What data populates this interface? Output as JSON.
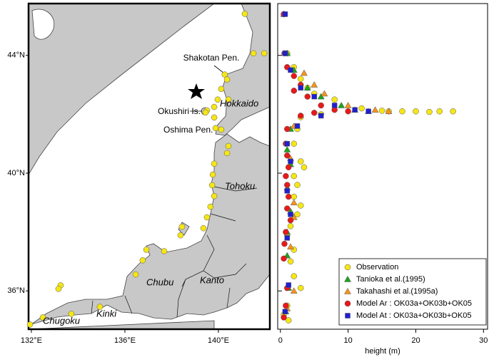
{
  "chart_data": [
    {
      "type": "map",
      "xlim": [
        131.88,
        142.2
      ],
      "ylim": [
        34.7,
        45.76
      ],
      "xticks": [
        {
          "value": 132,
          "label": "132°E"
        },
        {
          "value": 136,
          "label": "136°E"
        },
        {
          "value": 140,
          "label": "140°E"
        }
      ],
      "yticks": [
        {
          "value": 36,
          "label": "36°N"
        },
        {
          "value": 40,
          "label": "40°N"
        },
        {
          "value": 44,
          "label": "44°N"
        }
      ],
      "annotations": [
        "Shakotan Pen.",
        "Okushiri Is.",
        "Hokkaido",
        "Oshima Pen.",
        "Tohoku",
        "Chubu",
        "Kanto",
        "Kinki",
        "Chugoku"
      ],
      "series": [
        {
          "name": "Observation",
          "color": "#f5e616",
          "x": [
            141.13,
            141.5,
            141.96,
            140.27,
            140.37,
            140.12,
            140.43,
            139.97,
            139.82,
            139.51,
            139.45,
            139.82,
            139.88,
            140.12,
            140.43,
            140.37,
            139.82,
            139.76,
            139.73,
            139.82,
            139.66,
            139.51,
            139.36,
            138.44,
            138.38,
            137.68,
            136.92,
            136.76,
            136.46,
            133.25,
            133.16,
            134.93,
            133.71,
            132.49,
            131.94
          ],
          "y": [
            45.41,
            44.07,
            44.07,
            43.35,
            43.18,
            42.86,
            42.5,
            42.5,
            42.25,
            42.13,
            42.06,
            41.89,
            41.53,
            41.48,
            40.92,
            40.68,
            40.32,
            39.95,
            39.59,
            39.22,
            38.86,
            38.5,
            38.13,
            38.18,
            37.89,
            37.35,
            37.4,
            37.04,
            36.56,
            36.19,
            36.07,
            35.46,
            35.22,
            35.1,
            34.86
          ]
        }
      ]
    },
    {
      "type": "scatter",
      "xlim": [
        -0.4,
        30.6
      ],
      "ylim": [
        34.7,
        45.76
      ],
      "xticks": [
        0,
        10,
        20,
        30
      ],
      "yticks": [
        36,
        40,
        44
      ],
      "xlabel": "height (m)",
      "legend": "lower right",
      "series": [
        {
          "name": "Observation",
          "color": "#f5e616",
          "marker": "circle",
          "x": [
            0.5,
            1,
            2,
            3,
            4,
            5,
            8,
            12,
            15,
            16,
            20,
            22,
            23.5,
            25.5,
            18,
            6,
            3,
            2.5,
            2,
            3,
            3.5,
            2,
            2.5,
            2,
            3,
            2.5,
            1.5,
            1,
            2,
            1.5,
            3,
            2,
            1,
            0.5,
            1.2
          ],
          "y": [
            45.4,
            44.07,
            43.6,
            43.2,
            42.9,
            42.7,
            42.5,
            42.2,
            42.12,
            42.1,
            42.1,
            42.08,
            42.1,
            42.1,
            42.1,
            42.0,
            41.9,
            41.5,
            41.0,
            40.4,
            40.2,
            39.9,
            39.6,
            39.2,
            38.9,
            38.6,
            38.2,
            37.9,
            37.4,
            37.0,
            36.1,
            36.5,
            35.5,
            35.2,
            35.0
          ]
        },
        {
          "name": "Tanioka et al.(1995)",
          "color": "#1aa51a",
          "marker": "triangle",
          "x": [
            0.5,
            1,
            2,
            4,
            6,
            9,
            11,
            13,
            1.5,
            1,
            1.5,
            1,
            1.5,
            1,
            1,
            1.2,
            0.8
          ],
          "y": [
            45.4,
            44.07,
            43.5,
            42.9,
            42.6,
            42.3,
            42.15,
            42.1,
            41.5,
            40.8,
            40.3,
            39.5,
            38.7,
            38.0,
            37.2,
            36.1,
            35.3
          ]
        },
        {
          "name": "Takahashi et al.(1995a)",
          "color": "#f7941d",
          "marker": "triangle",
          "x": [
            3.5,
            5,
            6.5,
            10,
            14,
            16,
            2,
            1.5,
            2,
            2,
            1.5,
            2,
            1
          ],
          "y": [
            43.4,
            43.0,
            42.7,
            42.3,
            42.15,
            42.1,
            41.6,
            40.5,
            39.0,
            38.5,
            37.5,
            36.0,
            35.4
          ]
        },
        {
          "name": "Model Ar : OK03a+OK03b+OK05",
          "color": "#e8191a",
          "marker": "circle",
          "x": [
            0.5,
            0.6,
            1,
            2,
            3,
            2,
            4,
            6,
            8,
            10,
            5,
            3,
            1,
            0.8,
            1,
            1.2,
            0.8,
            1,
            1.2,
            1,
            1.5,
            0.8,
            0.6,
            0.5,
            1,
            0.8,
            0.5
          ],
          "y": [
            45.4,
            44.07,
            43.6,
            43.3,
            43.0,
            42.8,
            42.6,
            42.3,
            42.15,
            42.1,
            42.05,
            41.95,
            41.5,
            41.0,
            40.6,
            40.2,
            39.9,
            39.6,
            39.2,
            38.8,
            38.4,
            38.0,
            37.6,
            37.1,
            36.1,
            35.5,
            35.1
          ]
        },
        {
          "name": "Model At : OK03a+OK03b+OK05",
          "color": "#1f1fd1",
          "marker": "square",
          "x": [
            0.7,
            0.7,
            1.5,
            3,
            5,
            8,
            11,
            13,
            6,
            2.5,
            1,
            1.5,
            1,
            1.5,
            1,
            1.2,
            0.7
          ],
          "y": [
            45.4,
            44.07,
            43.5,
            42.9,
            42.6,
            42.3,
            42.15,
            42.1,
            41.95,
            41.6,
            41.0,
            40.4,
            39.4,
            38.6,
            37.8,
            36.2,
            35.3
          ]
        }
      ]
    }
  ]
}
